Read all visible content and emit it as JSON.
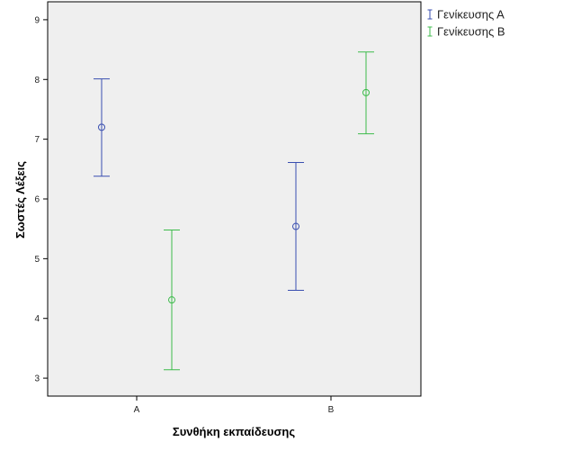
{
  "chart_data": {
    "type": "errorbar",
    "categories": [
      "A",
      "B"
    ],
    "xlabel": "Συνθήκη εκπαίδευσης",
    "ylabel": "Σωστές Λέξεις",
    "ylim": [
      2.7,
      9.3
    ],
    "yticks": [
      3,
      4,
      5,
      6,
      7,
      8,
      9
    ],
    "grid": false,
    "legend_position": "outside-top-right",
    "background": "#efefef",
    "series": [
      {
        "name": "Γενίκευσης Α",
        "color": "#3a4fb0",
        "points": [
          {
            "category": "A",
            "mean": 7.2,
            "lower": 6.38,
            "upper": 8.01
          },
          {
            "category": "B",
            "mean": 5.54,
            "lower": 4.47,
            "upper": 6.61
          }
        ]
      },
      {
        "name": "Γενίκευσης Β",
        "color": "#3dbb4b",
        "points": [
          {
            "category": "A",
            "mean": 4.31,
            "lower": 3.14,
            "upper": 5.48
          },
          {
            "category": "B",
            "mean": 7.78,
            "lower": 7.09,
            "upper": 8.46
          }
        ]
      }
    ]
  }
}
